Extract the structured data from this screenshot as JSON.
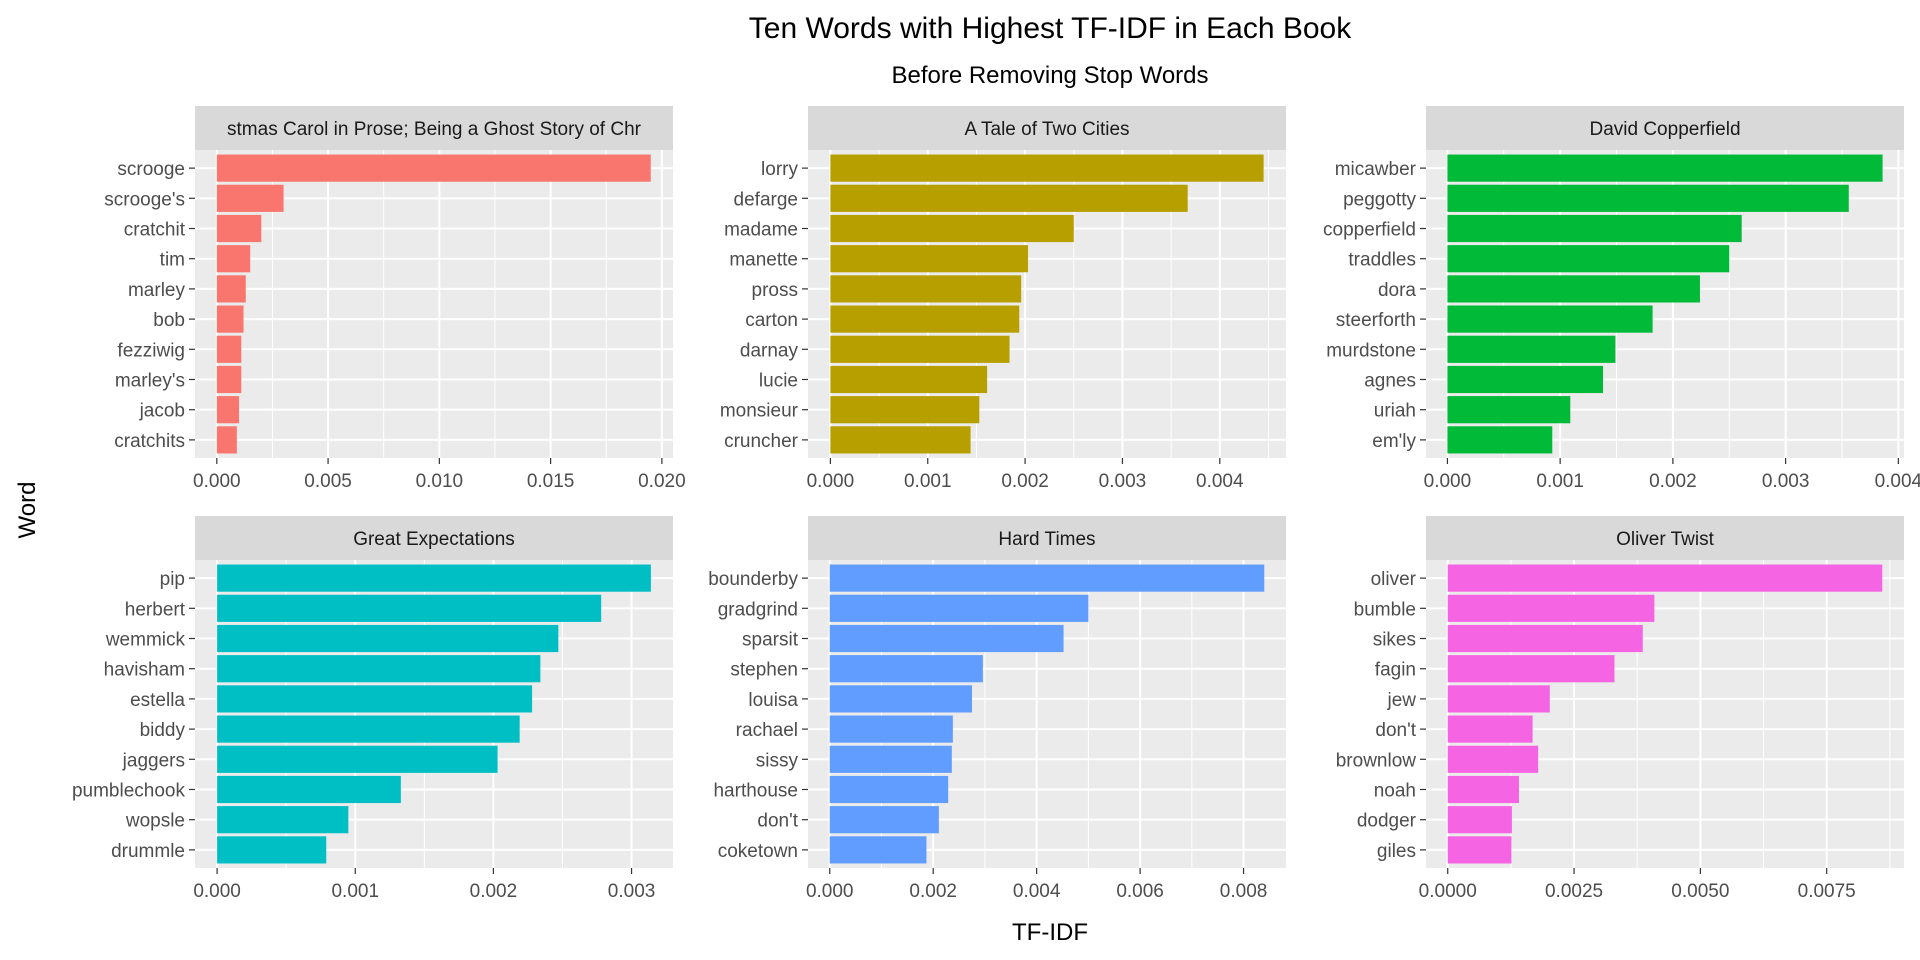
{
  "figure": {
    "title": "Ten Words with Highest TF-IDF in Each Book",
    "subtitle": "Before Removing Stop Words",
    "xlabel": "TF-IDF",
    "ylabel": "Word"
  },
  "chart_data": [
    {
      "type": "bar",
      "orientation": "horizontal",
      "facet_title": "A Christmas Carol in Prose; Being a Ghost Story of Christmas",
      "facet_title_visible": "stmas Carol in Prose; Being a Ghost Story of Chr",
      "color": "#F8766D",
      "categories": [
        "scrooge",
        "scrooge's",
        "cratchit",
        "tim",
        "marley",
        "bob",
        "fezziwig",
        "marley's",
        "jacob",
        "cratchits"
      ],
      "values": [
        0.0195,
        0.003,
        0.002,
        0.0015,
        0.0013,
        0.0012,
        0.0011,
        0.0011,
        0.001,
        0.0009
      ],
      "xlim": [
        -0.00098,
        0.0205
      ],
      "xticks": [
        0,
        0.005,
        0.01,
        0.015,
        0.02
      ],
      "xtick_labels": [
        "0.000",
        "0.005",
        "0.010",
        "0.015",
        "0.020"
      ]
    },
    {
      "type": "bar",
      "orientation": "horizontal",
      "facet_title": "A Tale of Two Cities",
      "color": "#B79F00",
      "categories": [
        "lorry",
        "defarge",
        "madame",
        "manette",
        "pross",
        "carton",
        "darnay",
        "lucie",
        "monsieur",
        "cruncher"
      ],
      "values": [
        0.00445,
        0.00367,
        0.0025,
        0.00203,
        0.00196,
        0.00194,
        0.00184,
        0.00161,
        0.00153,
        0.00144
      ],
      "xlim": [
        -0.00023,
        0.00468
      ],
      "xticks": [
        0,
        0.001,
        0.002,
        0.003,
        0.004
      ],
      "xtick_labels": [
        "0.000",
        "0.001",
        "0.002",
        "0.003",
        "0.004"
      ]
    },
    {
      "type": "bar",
      "orientation": "horizontal",
      "facet_title": "David Copperfield",
      "color": "#00BA38",
      "categories": [
        "micawber",
        "peggotty",
        "copperfield",
        "traddles",
        "dora",
        "steerforth",
        "murdstone",
        "agnes",
        "uriah",
        "em'ly"
      ],
      "values": [
        0.00386,
        0.00356,
        0.00261,
        0.0025,
        0.00224,
        0.00182,
        0.00149,
        0.00138,
        0.00109,
        0.00093
      ],
      "xlim": [
        -0.00019,
        0.00405
      ],
      "xticks": [
        0,
        0.001,
        0.002,
        0.003,
        0.004
      ],
      "xtick_labels": [
        "0.000",
        "0.001",
        "0.002",
        "0.003",
        "0.004"
      ]
    },
    {
      "type": "bar",
      "orientation": "horizontal",
      "facet_title": "Great Expectations",
      "color": "#00BFC4",
      "categories": [
        "pip",
        "herbert",
        "wemmick",
        "havisham",
        "estella",
        "biddy",
        "jaggers",
        "pumblechook",
        "wopsle",
        "drummle"
      ],
      "values": [
        0.00314,
        0.00278,
        0.00247,
        0.00234,
        0.00228,
        0.00219,
        0.00203,
        0.00133,
        0.00095,
        0.00079
      ],
      "xlim": [
        -0.00016,
        0.0033
      ],
      "xticks": [
        0,
        0.001,
        0.002,
        0.003
      ],
      "xtick_labels": [
        "0.000",
        "0.001",
        "0.002",
        "0.003"
      ]
    },
    {
      "type": "bar",
      "orientation": "horizontal",
      "facet_title": "Hard Times",
      "color": "#619CFF",
      "categories": [
        "bounderby",
        "gradgrind",
        "sparsit",
        "stephen",
        "louisa",
        "rachael",
        "sissy",
        "harthouse",
        "don't",
        "coketown"
      ],
      "values": [
        0.0084,
        0.005,
        0.00452,
        0.00296,
        0.00275,
        0.00238,
        0.00236,
        0.00229,
        0.00211,
        0.00187
      ],
      "xlim": [
        -0.00042,
        0.00882
      ],
      "xticks": [
        0,
        0.002,
        0.004,
        0.006,
        0.008
      ],
      "xtick_labels": [
        "0.000",
        "0.002",
        "0.004",
        "0.006",
        "0.008"
      ]
    },
    {
      "type": "bar",
      "orientation": "horizontal",
      "facet_title": "Oliver Twist",
      "color": "#F564E3",
      "categories": [
        "oliver",
        "bumble",
        "sikes",
        "fagin",
        "jew",
        "don't",
        "brownlow",
        "noah",
        "dodger",
        "giles"
      ],
      "values": [
        0.0086,
        0.00409,
        0.00386,
        0.0033,
        0.00202,
        0.00168,
        0.00179,
        0.00141,
        0.00127,
        0.00126
      ],
      "xlim": [
        -0.00043,
        0.00903
      ],
      "xticks": [
        0,
        0.0025,
        0.005,
        0.0075
      ],
      "xtick_labels": [
        "0.0000",
        "0.0025",
        "0.0050",
        "0.0075"
      ]
    }
  ]
}
